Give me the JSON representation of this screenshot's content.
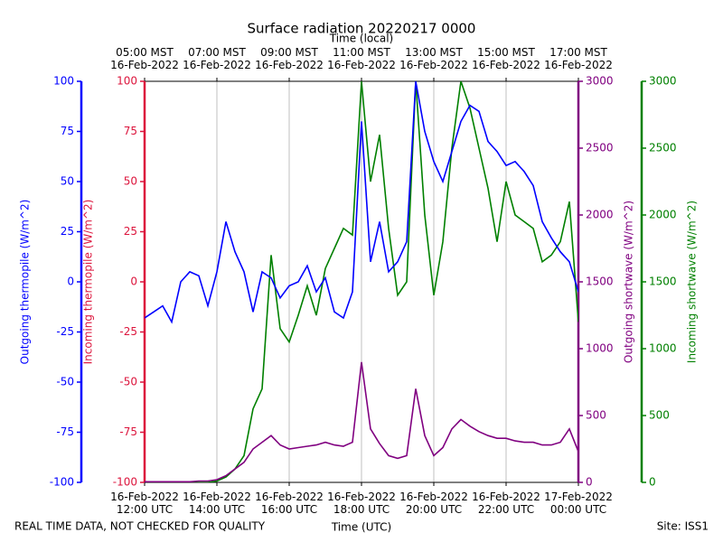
{
  "chart_data": {
    "type": "line",
    "title": "Surface radiation 20220217 0000",
    "xlabel": "Time (UTC)",
    "x2label": "Time (local)",
    "xlim": [
      12,
      24
    ],
    "xticks": [
      {
        "value": 12,
        "label": "16-Feb-2022\n12:00 UTC"
      },
      {
        "value": 14,
        "label": "16-Feb-2022\n14:00 UTC"
      },
      {
        "value": 16,
        "label": "16-Feb-2022\n16:00 UTC"
      },
      {
        "value": 18,
        "label": "16-Feb-2022\n18:00 UTC"
      },
      {
        "value": 20,
        "label": "16-Feb-2022\n20:00 UTC"
      },
      {
        "value": 22,
        "label": "16-Feb-2022\n22:00 UTC"
      },
      {
        "value": 24,
        "label": "17-Feb-2022\n00:00 UTC"
      }
    ],
    "x2ticks": [
      {
        "value": 12,
        "label": "05:00 MST\n16-Feb-2022"
      },
      {
        "value": 14,
        "label": "07:00 MST\n16-Feb-2022"
      },
      {
        "value": 16,
        "label": "09:00 MST\n16-Feb-2022"
      },
      {
        "value": 18,
        "label": "11:00 MST\n16-Feb-2022"
      },
      {
        "value": 20,
        "label": "13:00 MST\n16-Feb-2022"
      },
      {
        "value": 22,
        "label": "15:00 MST\n16-Feb-2022"
      },
      {
        "value": 24,
        "label": "17:00 MST\n16-Feb-2022"
      }
    ],
    "grid": "x",
    "axes": [
      {
        "id": "y",
        "label": "Outgoing thermopile (W/m^2)",
        "color": "#0000ff",
        "lim": [
          -100,
          100
        ],
        "ticks": [
          -100,
          -75,
          -50,
          -25,
          0,
          25,
          50,
          75,
          100
        ]
      },
      {
        "id": "y2",
        "label": "Incoming thermopile (W/m^2)",
        "color": "#dc143c",
        "lim": [
          -100,
          100
        ],
        "ticks": [
          -100,
          -75,
          -50,
          -25,
          0,
          25,
          50,
          75,
          100
        ]
      },
      {
        "id": "y3",
        "label": "Outgoing shortwave (W/m^2)",
        "color": "#800080",
        "lim": [
          0,
          3000
        ],
        "ticks": [
          0,
          500,
          1000,
          1500,
          2000,
          2500,
          3000
        ]
      },
      {
        "id": "y4",
        "label": "Incoming shortwave (W/m^2)",
        "color": "#008000",
        "lim": [
          0,
          3000
        ],
        "ticks": [
          0,
          500,
          1000,
          1500,
          2000,
          2500,
          3000
        ]
      }
    ],
    "x": [
      12,
      12.25,
      12.5,
      12.75,
      13,
      13.25,
      13.5,
      13.75,
      14,
      14.25,
      14.5,
      14.75,
      15,
      15.25,
      15.5,
      15.75,
      16,
      16.25,
      16.5,
      16.75,
      17,
      17.25,
      17.5,
      17.75,
      18,
      18.25,
      18.5,
      18.75,
      19,
      19.25,
      19.5,
      19.75,
      20,
      20.25,
      20.5,
      20.75,
      21,
      21.25,
      21.5,
      21.75,
      22,
      22.25,
      22.5,
      22.75,
      23,
      23.25,
      23.5,
      23.75,
      24
    ],
    "series": [
      {
        "name": "Incoming shortwave",
        "axis": "y4",
        "color": "#008000",
        "values": [
          0,
          0,
          0,
          0,
          0,
          0,
          0,
          0,
          10,
          40,
          100,
          200,
          550,
          700,
          1700,
          1150,
          1050,
          1250,
          1470,
          1250,
          1600,
          1750,
          1900,
          1850,
          3000,
          2250,
          2600,
          1900,
          1400,
          1500,
          3000,
          2000,
          1400,
          1800,
          2500,
          3000,
          2800,
          2500,
          2200,
          1800,
          2250,
          2000,
          1950,
          1900,
          1650,
          1700,
          1800,
          2100,
          1200
        ]
      },
      {
        "name": "Outgoing shortwave",
        "axis": "y3",
        "color": "#800080",
        "values": [
          5,
          5,
          5,
          5,
          5,
          5,
          10,
          10,
          20,
          50,
          100,
          150,
          250,
          300,
          350,
          280,
          250,
          260,
          270,
          280,
          300,
          280,
          270,
          300,
          900,
          400,
          290,
          200,
          180,
          200,
          700,
          350,
          200,
          260,
          400,
          470,
          420,
          380,
          350,
          330,
          330,
          310,
          300,
          300,
          280,
          280,
          300,
          400,
          230
        ]
      },
      {
        "name": "Outgoing thermopile",
        "axis": "y",
        "color": "#0000ff",
        "values": [
          -18,
          -15,
          -12,
          -20,
          0,
          5,
          3,
          -12,
          5,
          30,
          15,
          5,
          -15,
          5,
          2,
          -8,
          -2,
          0,
          8,
          -5,
          2,
          -15,
          -18,
          -5,
          80,
          10,
          30,
          5,
          10,
          20,
          100,
          75,
          60,
          50,
          65,
          80,
          88,
          85,
          70,
          65,
          58,
          60,
          55,
          48,
          30,
          22,
          15,
          10,
          -5
        ]
      }
    ],
    "footer_left": "REAL TIME DATA, NOT CHECKED FOR QUALITY",
    "footer_right": "Site: ISS1"
  }
}
